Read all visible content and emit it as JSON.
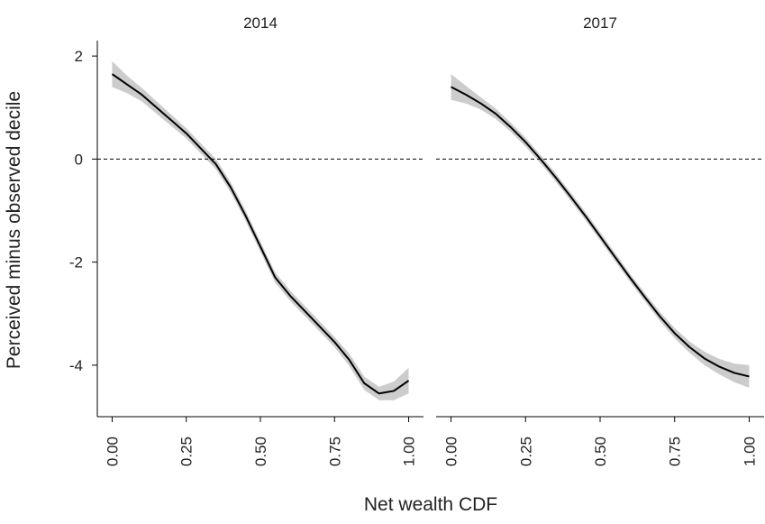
{
  "chart_data": {
    "type": "line",
    "y_label": "Perceived minus observed decile",
    "x_label": "Net wealth CDF",
    "ylim": [
      -5,
      2.3
    ],
    "yticks": [
      -4,
      -2,
      0,
      2
    ],
    "xlim": [
      -0.05,
      1.05
    ],
    "xticks": [
      {
        "value": 0,
        "label": "0.00"
      },
      0.25,
      {
        "value": 0.5,
        "label": "0.50"
      },
      0.75,
      {
        "value": 1,
        "label": "1.00"
      }
    ],
    "hline": 0,
    "line_color": "#000000",
    "band_color": "#cccccc",
    "x": [
      0,
      0.05,
      0.1,
      0.15,
      0.2,
      0.25,
      0.3,
      0.35,
      0.4,
      0.45,
      0.5,
      0.55,
      0.6,
      0.65,
      0.7,
      0.75,
      0.8,
      0.85,
      0.9,
      0.95,
      1
    ],
    "panels": [
      {
        "title": "2014",
        "values": [
          1.65,
          1.45,
          1.25,
          1.0,
          0.75,
          0.5,
          0.2,
          -0.1,
          -0.55,
          -1.1,
          -1.7,
          -2.3,
          -2.65,
          -2.95,
          -3.25,
          -3.55,
          -3.9,
          -4.35,
          -4.55,
          -4.5,
          -4.3
        ],
        "upper": [
          1.9,
          1.62,
          1.38,
          1.12,
          0.86,
          0.6,
          0.3,
          0.0,
          -0.45,
          -1.0,
          -1.6,
          -2.2,
          -2.55,
          -2.85,
          -3.15,
          -3.45,
          -3.78,
          -4.22,
          -4.42,
          -4.32,
          -4.05
        ],
        "lower": [
          1.4,
          1.28,
          1.12,
          0.88,
          0.64,
          0.4,
          0.1,
          -0.2,
          -0.65,
          -1.2,
          -1.8,
          -2.4,
          -2.75,
          -3.05,
          -3.35,
          -3.65,
          -4.02,
          -4.48,
          -4.68,
          -4.68,
          -4.55
        ]
      },
      {
        "title": "2017",
        "values": [
          1.4,
          1.25,
          1.08,
          0.88,
          0.62,
          0.33,
          0.0,
          -0.35,
          -0.72,
          -1.1,
          -1.5,
          -1.9,
          -2.3,
          -2.68,
          -3.05,
          -3.38,
          -3.65,
          -3.87,
          -4.03,
          -4.15,
          -4.22
        ],
        "upper": [
          1.65,
          1.42,
          1.2,
          0.98,
          0.71,
          0.42,
          0.08,
          -0.27,
          -0.64,
          -1.02,
          -1.42,
          -1.82,
          -2.22,
          -2.6,
          -2.96,
          -3.28,
          -3.54,
          -3.74,
          -3.88,
          -3.97,
          -4.0
        ],
        "lower": [
          1.15,
          1.08,
          0.96,
          0.78,
          0.53,
          0.24,
          -0.08,
          -0.43,
          -0.8,
          -1.18,
          -1.58,
          -1.98,
          -2.38,
          -2.76,
          -3.14,
          -3.48,
          -3.76,
          -4.0,
          -4.18,
          -4.33,
          -4.44
        ]
      }
    ]
  }
}
